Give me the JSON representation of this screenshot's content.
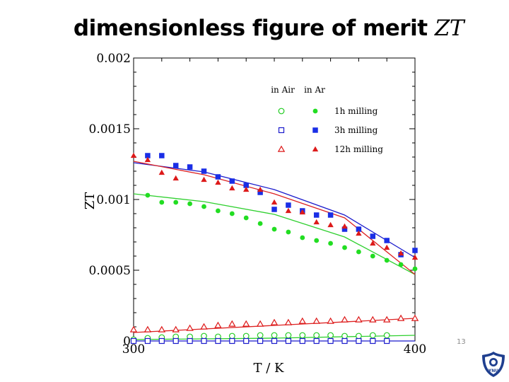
{
  "slide": {
    "title_prefix": "dimensionless figure of merit ",
    "title_variable": "ZT",
    "page_number": "13"
  },
  "logo": {
    "name": "university-seal",
    "text": "YNU"
  },
  "chart_data": {
    "type": "scatter",
    "title": "",
    "xlabel": "T / K",
    "ylabel": "ZT",
    "xlim": [
      300,
      400
    ],
    "ylim": [
      0,
      0.002
    ],
    "x_ticks": [
      "300",
      "400"
    ],
    "y_ticks": [
      "0",
      "0.0005",
      "0.001",
      "0.0015",
      "0.002"
    ],
    "legend": {
      "placement": "top-right",
      "header_air": "in Air",
      "header_ar": "in Ar",
      "entries": [
        "1h milling",
        "3h milling",
        "12h milling"
      ]
    },
    "series": [
      {
        "name": "1h milling in Air",
        "marker": "open-circle",
        "color": "#22cc22",
        "points": [
          [
            300,
            1e-05
          ],
          [
            305,
            2e-05
          ],
          [
            310,
            2.5e-05
          ],
          [
            315,
            3e-05
          ],
          [
            320,
            3e-05
          ],
          [
            325,
            3.5e-05
          ],
          [
            330,
            3e-05
          ],
          [
            335,
            3.5e-05
          ],
          [
            340,
            3.5e-05
          ],
          [
            345,
            4e-05
          ],
          [
            350,
            4e-05
          ],
          [
            355,
            4e-05
          ],
          [
            360,
            4e-05
          ],
          [
            365,
            4e-05
          ],
          [
            370,
            4e-05
          ],
          [
            375,
            3.5e-05
          ],
          [
            380,
            3.5e-05
          ],
          [
            385,
            4e-05
          ],
          [
            390,
            4e-05
          ]
        ]
      },
      {
        "name": "1h milling in Ar",
        "marker": "filled-circle",
        "color": "#22dd22",
        "points": [
          [
            305,
            0.00103
          ],
          [
            310,
            0.00098
          ],
          [
            315,
            0.00098
          ],
          [
            320,
            0.00097
          ],
          [
            325,
            0.00095
          ],
          [
            330,
            0.00092
          ],
          [
            335,
            0.0009
          ],
          [
            340,
            0.00087
          ],
          [
            345,
            0.00083
          ],
          [
            350,
            0.00079
          ],
          [
            355,
            0.00077
          ],
          [
            360,
            0.00073
          ],
          [
            365,
            0.00071
          ],
          [
            370,
            0.00069
          ],
          [
            375,
            0.00066
          ],
          [
            380,
            0.00063
          ],
          [
            385,
            0.0006
          ],
          [
            390,
            0.00057
          ],
          [
            395,
            0.00054
          ],
          [
            400,
            0.00051
          ]
        ]
      },
      {
        "name": "3h milling in Air",
        "marker": "open-square",
        "color": "#1a1acc",
        "points": [
          [
            300,
            0.0
          ],
          [
            305,
            0.0
          ],
          [
            310,
            0.0
          ],
          [
            315,
            0.0
          ],
          [
            320,
            0.0
          ],
          [
            325,
            0.0
          ],
          [
            330,
            0.0
          ],
          [
            335,
            0.0
          ],
          [
            340,
            0.0
          ],
          [
            345,
            0.0
          ],
          [
            350,
            0.0
          ],
          [
            355,
            0.0
          ],
          [
            360,
            0.0
          ],
          [
            365,
            0.0
          ],
          [
            370,
            0.0
          ],
          [
            375,
            0.0
          ],
          [
            380,
            0.0
          ],
          [
            385,
            0.0
          ],
          [
            390,
            0.0
          ]
        ]
      },
      {
        "name": "3h milling in Ar",
        "marker": "filled-square",
        "color": "#1a2ee6",
        "points": [
          [
            305,
            0.00131
          ],
          [
            310,
            0.00131
          ],
          [
            315,
            0.00124
          ],
          [
            320,
            0.00123
          ],
          [
            325,
            0.0012
          ],
          [
            330,
            0.00116
          ],
          [
            335,
            0.00113
          ],
          [
            340,
            0.0011
          ],
          [
            345,
            0.00105
          ],
          [
            350,
            0.00093
          ],
          [
            355,
            0.00096
          ],
          [
            360,
            0.00092
          ],
          [
            365,
            0.00089
          ],
          [
            370,
            0.00089
          ],
          [
            375,
            0.00079
          ],
          [
            380,
            0.00079
          ],
          [
            385,
            0.00074
          ],
          [
            390,
            0.00071
          ],
          [
            395,
            0.00061
          ],
          [
            400,
            0.00064
          ]
        ]
      },
      {
        "name": "12h milling in Air",
        "marker": "open-triangle",
        "color": "#dd1a1a",
        "points": [
          [
            300,
            8e-05
          ],
          [
            305,
            8e-05
          ],
          [
            310,
            8e-05
          ],
          [
            315,
            8e-05
          ],
          [
            320,
            9e-05
          ],
          [
            325,
            0.0001
          ],
          [
            330,
            0.00011
          ],
          [
            335,
            0.00012
          ],
          [
            340,
            0.00012
          ],
          [
            345,
            0.00012
          ],
          [
            350,
            0.00013
          ],
          [
            355,
            0.00013
          ],
          [
            360,
            0.00014
          ],
          [
            365,
            0.00014
          ],
          [
            370,
            0.00014
          ],
          [
            375,
            0.00015
          ],
          [
            380,
            0.00015
          ],
          [
            385,
            0.00015
          ],
          [
            390,
            0.00015
          ],
          [
            395,
            0.00016
          ],
          [
            400,
            0.00016
          ]
        ]
      },
      {
        "name": "12h milling in Ar",
        "marker": "filled-triangle",
        "color": "#dd1a1a",
        "points": [
          [
            300,
            0.00131
          ],
          [
            305,
            0.00128
          ],
          [
            310,
            0.00119
          ],
          [
            315,
            0.00115
          ],
          [
            325,
            0.00114
          ],
          [
            330,
            0.00112
          ],
          [
            335,
            0.00108
          ],
          [
            340,
            0.00107
          ],
          [
            345,
            0.00107
          ],
          [
            350,
            0.00098
          ],
          [
            355,
            0.00092
          ],
          [
            360,
            0.00091
          ],
          [
            365,
            0.00084
          ],
          [
            370,
            0.00082
          ],
          [
            375,
            0.00081
          ],
          [
            380,
            0.00076
          ],
          [
            385,
            0.00069
          ],
          [
            390,
            0.00066
          ],
          [
            395,
            0.00062
          ],
          [
            400,
            0.00059
          ]
        ]
      }
    ],
    "fits": [
      {
        "name": "1h milling in Ar fit",
        "color": "#2fd02f",
        "points": [
          [
            300,
            0.00104
          ],
          [
            325,
            0.000985
          ],
          [
            350,
            0.000895
          ],
          [
            375,
            0.000735
          ],
          [
            400,
            0.00047
          ]
        ]
      },
      {
        "name": "3h milling in Ar fit",
        "color": "#1a1acc",
        "points": [
          [
            300,
            0.00126
          ],
          [
            325,
            0.001195
          ],
          [
            350,
            0.00107
          ],
          [
            375,
            0.00089
          ],
          [
            400,
            0.00059
          ]
        ]
      },
      {
        "name": "12h milling in Ar fit",
        "color": "#dd2222",
        "points": [
          [
            300,
            0.00127
          ],
          [
            325,
            0.001175
          ],
          [
            350,
            0.00104
          ],
          [
            375,
            0.00087
          ],
          [
            400,
            0.00047
          ]
        ]
      },
      {
        "name": "1h milling in Air fit",
        "color": "#2fd02f",
        "points": [
          [
            300,
            1e-05
          ],
          [
            350,
            2e-05
          ],
          [
            400,
            4e-05
          ]
        ]
      },
      {
        "name": "3h milling in Air fit",
        "color": "#1a1acc",
        "points": [
          [
            300,
            0.0
          ],
          [
            400,
            0.0
          ]
        ]
      },
      {
        "name": "12h milling in Air fit",
        "color": "#dd2222",
        "points": [
          [
            300,
            6e-05
          ],
          [
            350,
            0.00011
          ],
          [
            400,
            0.00016
          ]
        ]
      }
    ]
  }
}
